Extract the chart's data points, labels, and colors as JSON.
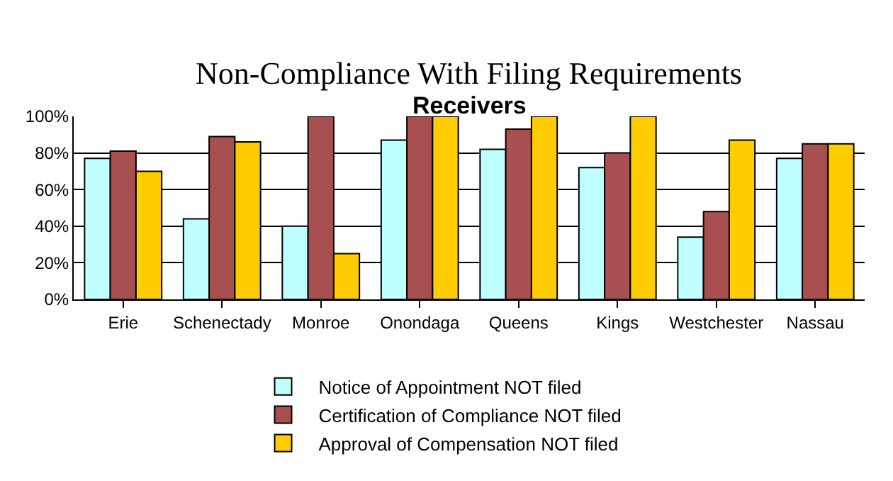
{
  "chart_data": {
    "type": "bar",
    "title": "Non-Compliance With Filing Requirements",
    "subtitle": "Receivers",
    "categories": [
      "Erie",
      "Schenectady",
      "Monroe",
      "Onondaga",
      "Queens",
      "Kings",
      "Westchester",
      "Nassau"
    ],
    "series": [
      {
        "name": "Notice of Appointment NOT filed",
        "color": "#bfffff",
        "values": [
          77,
          44,
          40,
          87,
          82,
          72,
          34,
          77
        ]
      },
      {
        "name": "Certification of Compliance NOT filed",
        "color": "#a8504f",
        "values": [
          81,
          89,
          100,
          100,
          93,
          80,
          48,
          85
        ]
      },
      {
        "name": "Approval of Compensation NOT filed",
        "color": "#ffcc00",
        "values": [
          70,
          86,
          25,
          100,
          100,
          100,
          87,
          85
        ]
      }
    ],
    "ylim": [
      0,
      100
    ],
    "yticks": [
      {
        "value": 0,
        "label": "0%"
      },
      {
        "value": 20,
        "label": "20%"
      },
      {
        "value": 40,
        "label": "40%"
      },
      {
        "value": 60,
        "label": "60%"
      },
      {
        "value": 80,
        "label": "80%"
      },
      {
        "value": 100,
        "label": "100%"
      }
    ],
    "grid": "y",
    "legend": "bottom"
  }
}
